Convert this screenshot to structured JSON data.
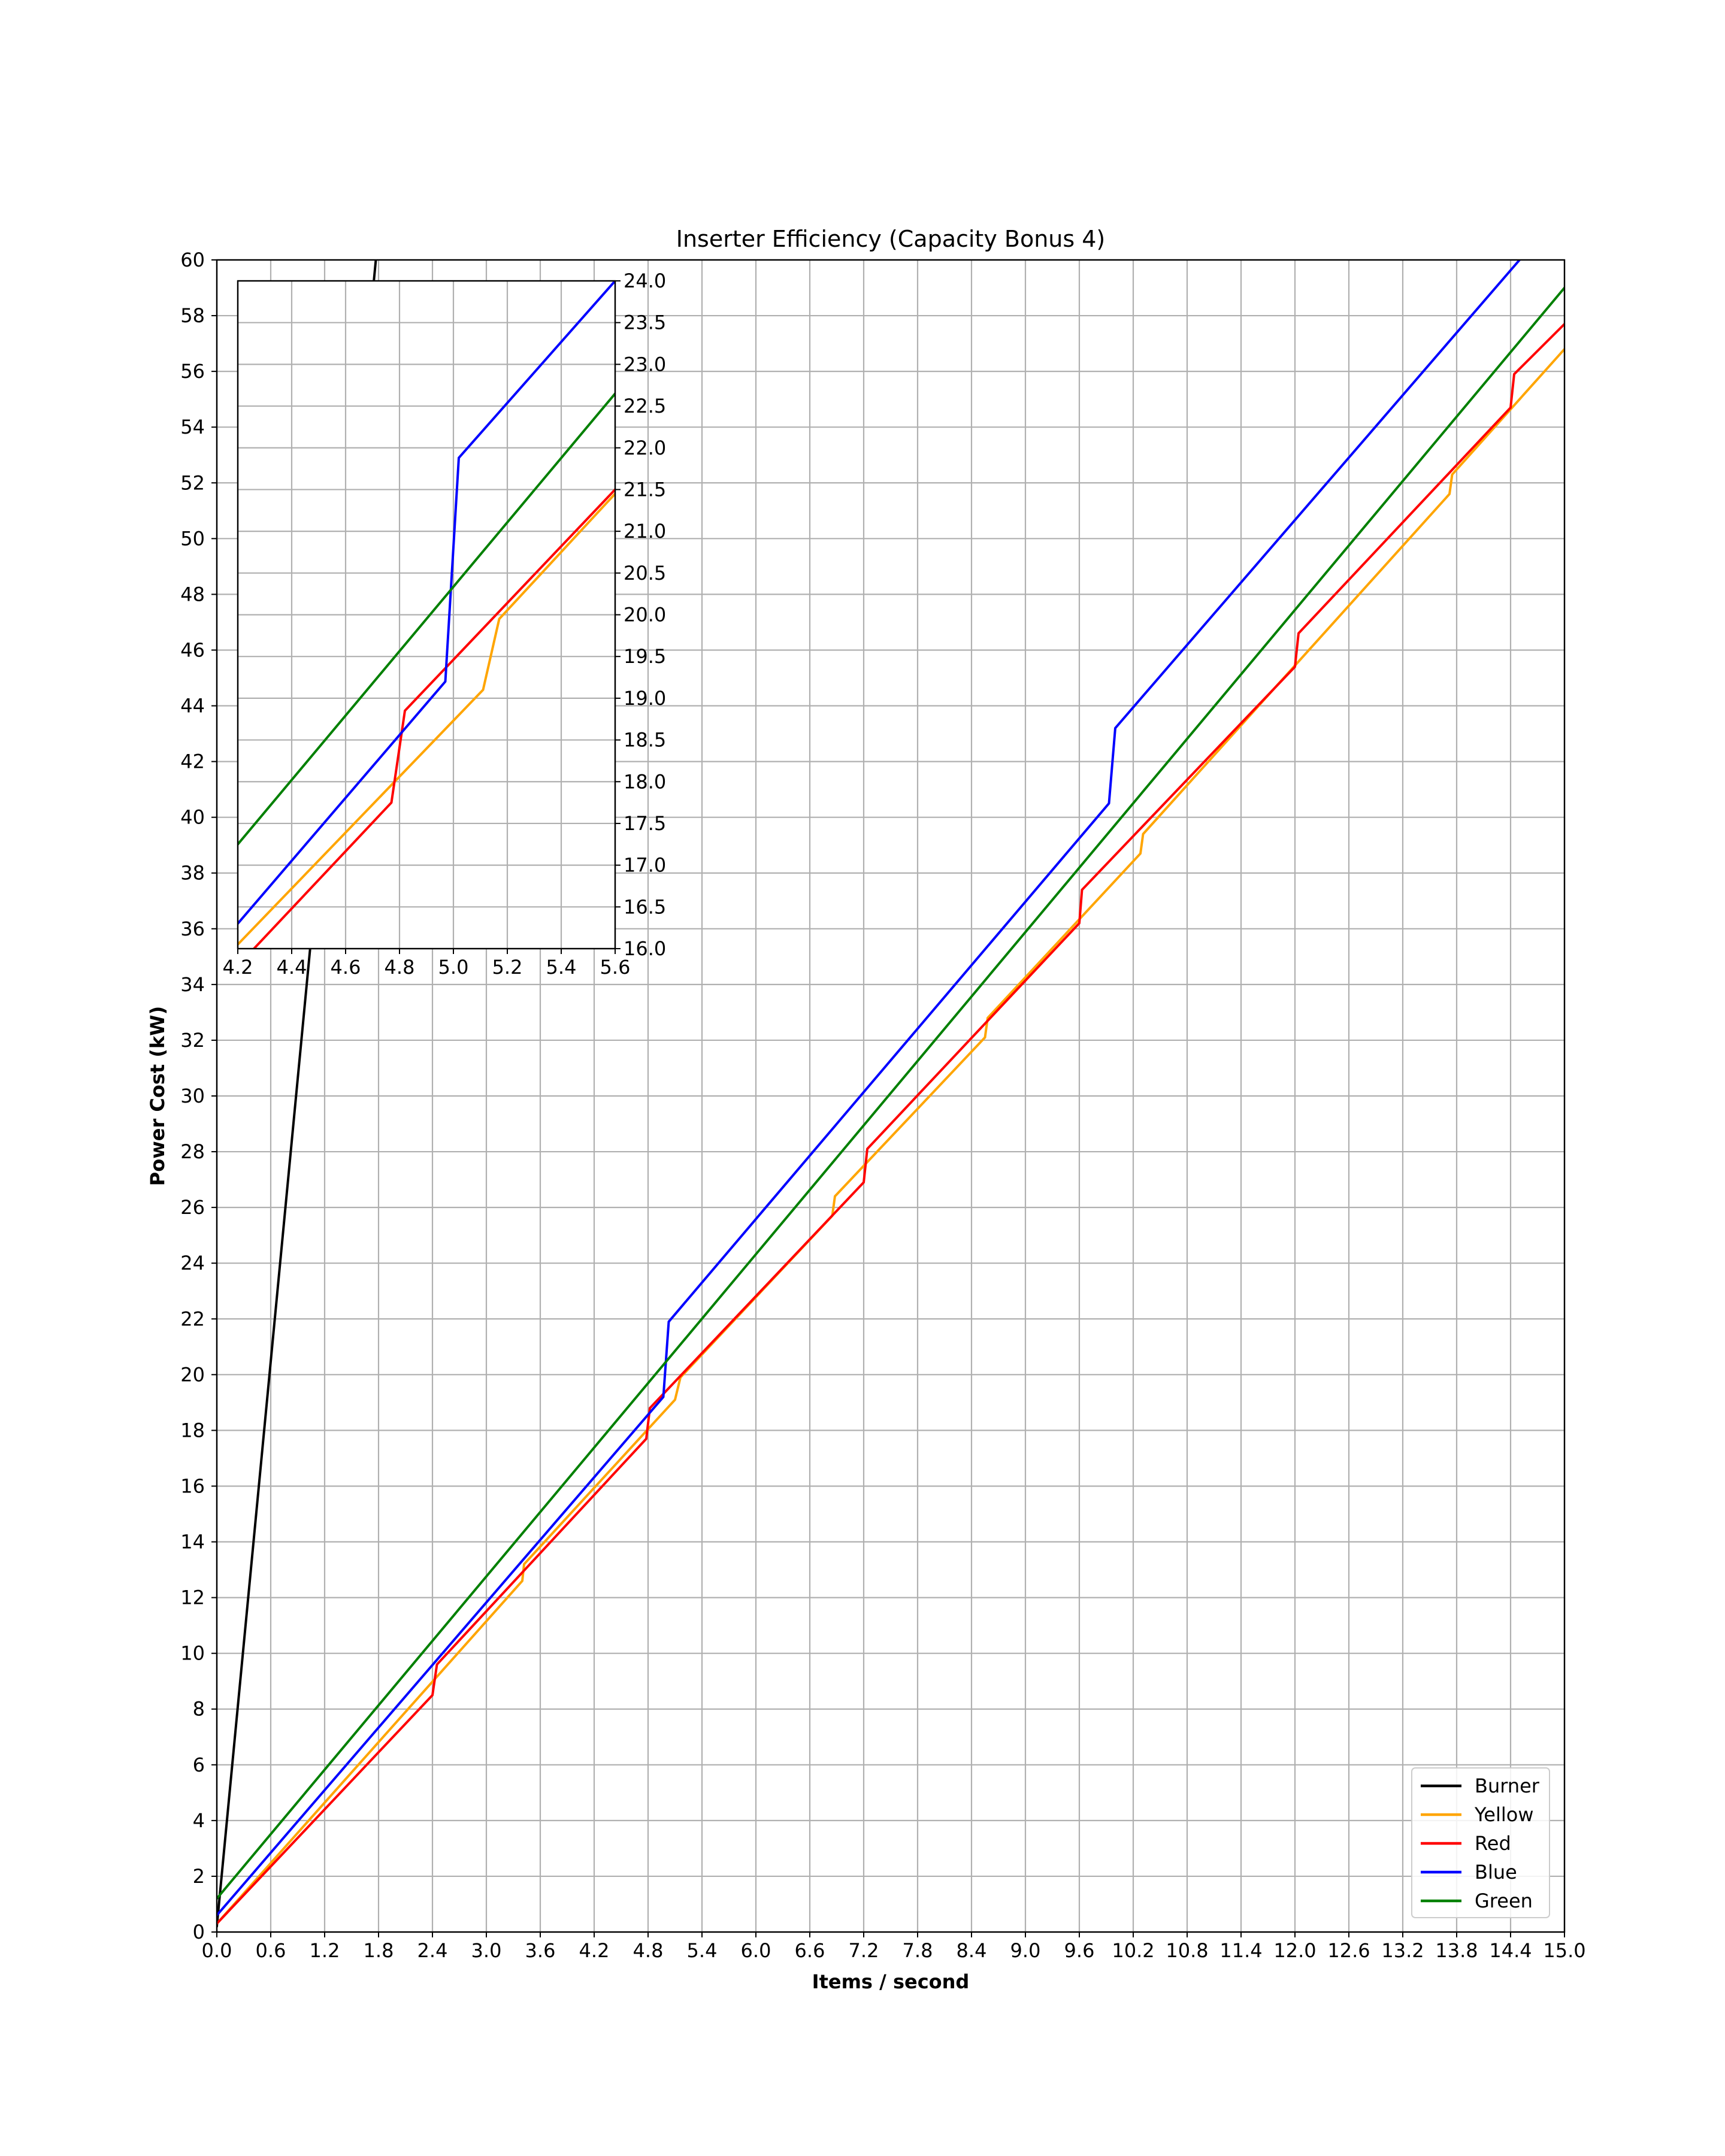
{
  "chart_data": {
    "type": "line",
    "title": "Inserter Efficiency (Capacity Bonus 4)",
    "xlabel": "Items / second",
    "ylabel": "Power Cost (kW)",
    "xlim": [
      0,
      15
    ],
    "ylim": [
      0,
      60
    ],
    "x_ticks": [
      "0.0",
      "0.6",
      "1.2",
      "1.8",
      "2.4",
      "3.0",
      "3.6",
      "4.2",
      "4.8",
      "5.4",
      "6.0",
      "6.6",
      "7.2",
      "7.8",
      "8.4",
      "9.0",
      "9.6",
      "10.2",
      "10.8",
      "11.4",
      "12.0",
      "12.6",
      "13.2",
      "13.8",
      "14.4",
      "15.0"
    ],
    "y_ticks": [
      "0",
      "2",
      "4",
      "6",
      "8",
      "10",
      "12",
      "14",
      "16",
      "18",
      "20",
      "22",
      "24",
      "26",
      "28",
      "30",
      "32",
      "34",
      "36",
      "38",
      "40",
      "42",
      "44",
      "46",
      "48",
      "50",
      "52",
      "54",
      "56",
      "58",
      "60"
    ],
    "grid": true,
    "legend_position": "lower-right",
    "series": [
      {
        "name": "Burner",
        "color": "#000000",
        "points": [
          [
            0,
            0.2
          ],
          [
            1.77,
            60
          ]
        ]
      },
      {
        "name": "Yellow",
        "color": "#ffa500",
        "points": [
          [
            0,
            0.3
          ],
          [
            3.4,
            12.6
          ],
          [
            3.42,
            13.2
          ],
          [
            5.1,
            19.1
          ],
          [
            5.16,
            19.9
          ],
          [
            6.85,
            25.7
          ],
          [
            6.88,
            26.4
          ],
          [
            8.55,
            32.1
          ],
          [
            8.58,
            32.8
          ],
          [
            10.28,
            38.7
          ],
          [
            10.31,
            39.4
          ],
          [
            13.72,
            51.6
          ],
          [
            13.75,
            52.3
          ],
          [
            15,
            56.8
          ]
        ]
      },
      {
        "name": "Red",
        "color": "#ff0000",
        "points": [
          [
            0,
            0.3
          ],
          [
            2.4,
            8.5
          ],
          [
            2.45,
            9.6
          ],
          [
            4.78,
            17.7
          ],
          [
            4.82,
            18.8
          ],
          [
            7.2,
            26.9
          ],
          [
            7.24,
            28.1
          ],
          [
            9.6,
            36.2
          ],
          [
            9.63,
            37.4
          ],
          [
            12,
            45.4
          ],
          [
            12.04,
            46.6
          ],
          [
            14.4,
            54.7
          ],
          [
            14.44,
            55.9
          ],
          [
            15,
            57.7
          ]
        ]
      },
      {
        "name": "Blue",
        "color": "#0000ff",
        "points": [
          [
            0,
            0.6
          ],
          [
            4.97,
            19.2
          ],
          [
            5.03,
            21.9
          ],
          [
            9.93,
            40.5
          ],
          [
            10,
            43.2
          ],
          [
            14.5,
            60
          ]
        ]
      },
      {
        "name": "Green",
        "color": "#008000",
        "points": [
          [
            0,
            1.2
          ],
          [
            15,
            59
          ]
        ]
      }
    ],
    "inset": {
      "xlim": [
        4.2,
        5.6
      ],
      "ylim": [
        16,
        24
      ],
      "x_ticks": [
        "4.2",
        "4.4",
        "4.6",
        "4.8",
        "5.0",
        "5.2",
        "5.4",
        "5.6"
      ],
      "y_ticks": [
        "16.0",
        "16.5",
        "17.0",
        "17.5",
        "18.0",
        "18.5",
        "19.0",
        "19.5",
        "20.0",
        "20.5",
        "21.0",
        "21.5",
        "22.0",
        "22.5",
        "23.0",
        "23.5",
        "24.0"
      ],
      "grid": true,
      "series": [
        {
          "name": "Yellow",
          "color": "#ffa500",
          "points": [
            [
              4.2,
              16.05
            ],
            [
              5.11,
              19.1
            ],
            [
              5.17,
              19.95
            ],
            [
              5.6,
              21.45
            ]
          ]
        },
        {
          "name": "Red",
          "color": "#ff0000",
          "points": [
            [
              4.26,
              16
            ],
            [
              4.77,
              17.75
            ],
            [
              4.82,
              18.85
            ],
            [
              5.6,
              21.5
            ]
          ]
        },
        {
          "name": "Blue",
          "color": "#0000ff",
          "points": [
            [
              4.2,
              16.3
            ],
            [
              4.97,
              19.2
            ],
            [
              5.02,
              21.88
            ],
            [
              5.6,
              24
            ]
          ]
        },
        {
          "name": "Green",
          "color": "#008000",
          "points": [
            [
              4.2,
              17.25
            ],
            [
              5.6,
              22.65
            ]
          ]
        }
      ]
    }
  }
}
